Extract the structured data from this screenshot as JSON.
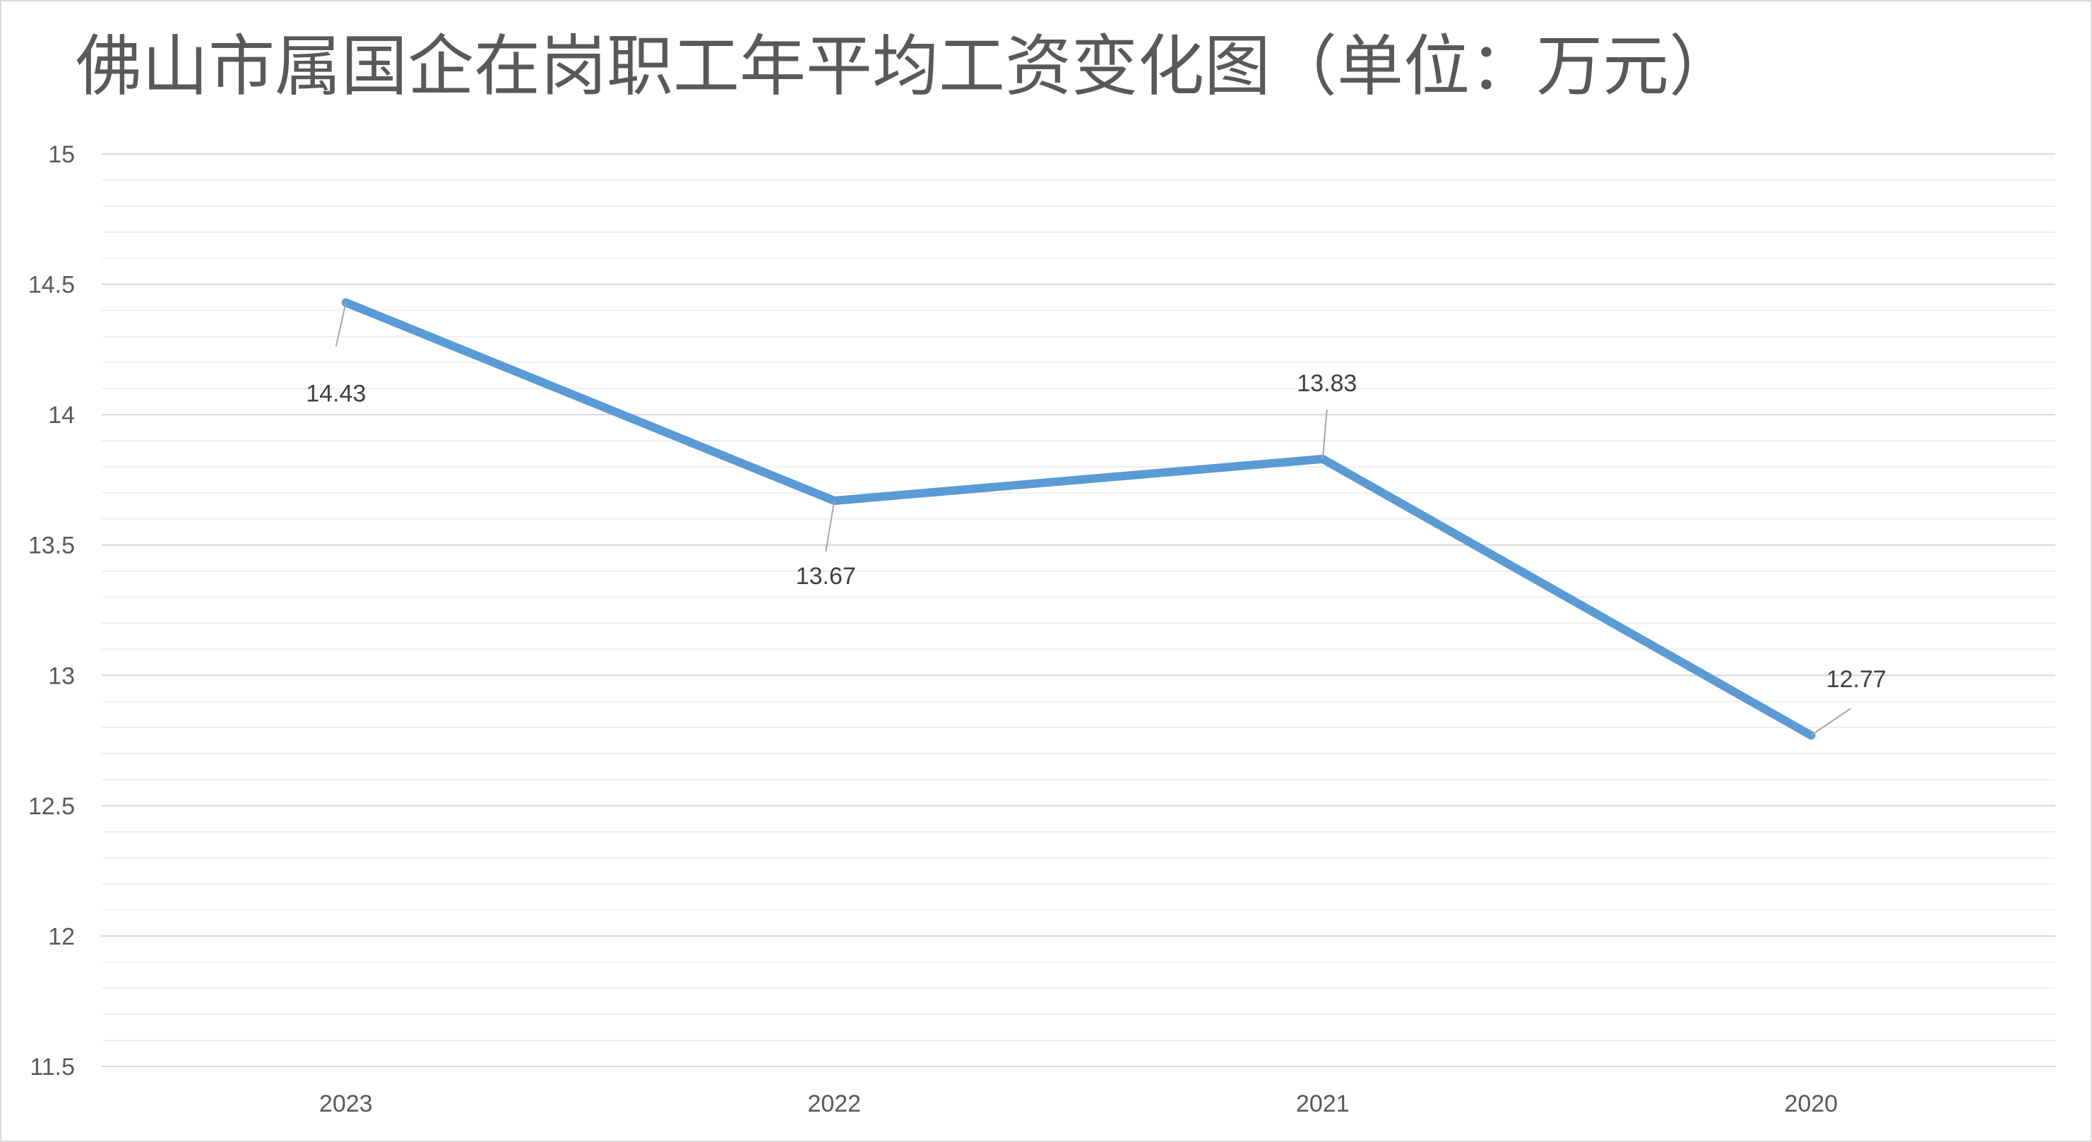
{
  "colors": {
    "series": "#5b9bd5",
    "grid_major": "#d9d9d9",
    "grid_minor": "#efefef",
    "text": "#595959",
    "frame": "#d9d9d9"
  },
  "chart_data": {
    "type": "line",
    "title": "佛山市属国企在岗职工年平均工资变化图（单位：万元）",
    "xlabel": "",
    "ylabel": "",
    "categories": [
      "2023",
      "2022",
      "2021",
      "2020"
    ],
    "series": [
      {
        "values": [
          14.43,
          13.67,
          13.83,
          12.77
        ]
      }
    ],
    "data_labels": [
      "14.43",
      "13.67",
      "13.83",
      "12.77"
    ],
    "ylim": [
      11.5,
      15
    ],
    "y_ticks": [
      "11.5",
      "12",
      "12.5",
      "13",
      "13.5",
      "14",
      "14.5",
      "15"
    ],
    "y_tick_values": [
      11.5,
      12,
      12.5,
      13,
      13.5,
      14,
      14.5,
      15
    ],
    "minor_step": 0.1,
    "grid": true,
    "legend": "none"
  }
}
